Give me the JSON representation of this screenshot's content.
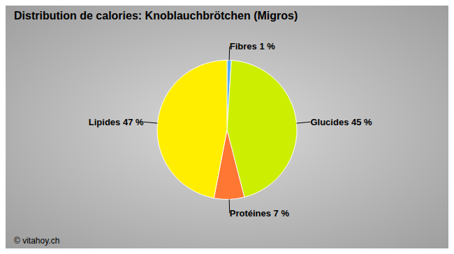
{
  "chart_data": {
    "type": "pie",
    "title": "Distribution de calories: Knoblauchbrötchen (Migros)",
    "categories": [
      "Fibres 1 %",
      "Glucides 45 %",
      "Protéines 7 %",
      "Lipides 47 %"
    ],
    "values": [
      1,
      45,
      7,
      47
    ],
    "colors": [
      "#55aaff",
      "#ccee00",
      "#ff7733",
      "#ffee00"
    ],
    "annotations": [
      "© vitahoy.ch"
    ]
  }
}
